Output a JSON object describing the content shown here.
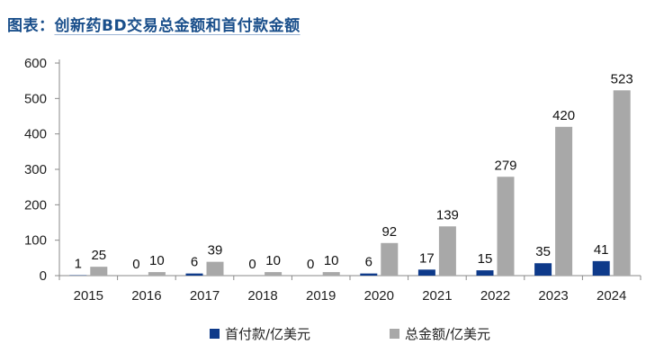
{
  "chart_data": {
    "type": "bar",
    "title_prefix": "图表：",
    "title": "创新药BD交易总金额和首付款金额",
    "categories": [
      "2015",
      "2016",
      "2017",
      "2018",
      "2019",
      "2020",
      "2021",
      "2022",
      "2023",
      "2024"
    ],
    "series": [
      {
        "name": "首付款/亿美元",
        "color": "#0e3a8a",
        "values": [
          1,
          0,
          6,
          0,
          0,
          6,
          17,
          15,
          35,
          41
        ]
      },
      {
        "name": "总金额/亿美元",
        "color": "#a8a8a8",
        "values": [
          25,
          10,
          39,
          10,
          10,
          92,
          139,
          279,
          420,
          523
        ]
      }
    ],
    "ylim": [
      0,
      600
    ],
    "yticks": [
      0,
      100,
      200,
      300,
      400,
      500,
      600
    ],
    "grid": false,
    "legend_position": "bottom"
  }
}
